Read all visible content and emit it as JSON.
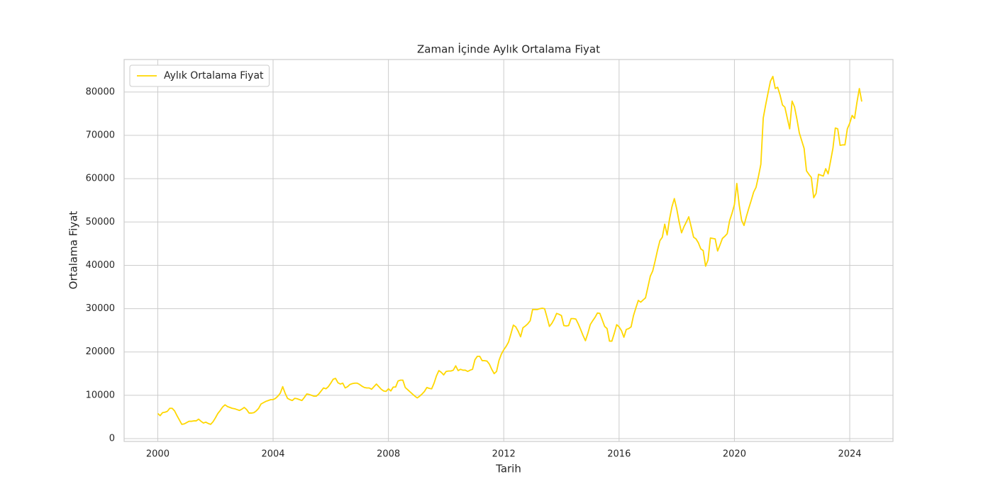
{
  "chart_data": {
    "type": "line",
    "title": "Zaman İçinde Aylık Ortalama Fiyat",
    "xlabel": "Tarih",
    "ylabel": "Ortalama Fiyat",
    "legend": "upper left",
    "grid": true,
    "xlim": [
      "1998-11",
      "2025-07"
    ],
    "xticks": [
      "2000",
      "2004",
      "2008",
      "2012",
      "2016",
      "2020",
      "2024"
    ],
    "ylim": [
      -650,
      87500
    ],
    "yticks": [
      0,
      10000,
      20000,
      30000,
      40000,
      50000,
      60000,
      70000,
      80000
    ],
    "x": [
      "2000-01",
      "2000-02",
      "2000-03",
      "2000-04",
      "2000-05",
      "2000-06",
      "2000-07",
      "2000-08",
      "2000-09",
      "2000-10",
      "2000-11",
      "2000-12",
      "2001-01",
      "2001-02",
      "2001-03",
      "2001-04",
      "2001-05",
      "2001-06",
      "2001-07",
      "2001-08",
      "2001-09",
      "2001-10",
      "2001-11",
      "2001-12",
      "2002-01",
      "2002-02",
      "2002-03",
      "2002-04",
      "2002-05",
      "2002-06",
      "2002-07",
      "2002-08",
      "2002-09",
      "2002-10",
      "2002-11",
      "2002-12",
      "2003-01",
      "2003-02",
      "2003-03",
      "2003-04",
      "2003-05",
      "2003-06",
      "2003-07",
      "2003-08",
      "2003-09",
      "2003-10",
      "2003-11",
      "2003-12",
      "2004-01",
      "2004-02",
      "2004-03",
      "2004-04",
      "2004-05",
      "2004-06",
      "2004-07",
      "2004-08",
      "2004-09",
      "2004-10",
      "2004-11",
      "2004-12",
      "2005-01",
      "2005-02",
      "2005-03",
      "2005-04",
      "2005-05",
      "2005-06",
      "2005-07",
      "2005-08",
      "2005-09",
      "2005-10",
      "2005-11",
      "2005-12",
      "2006-01",
      "2006-02",
      "2006-03",
      "2006-04",
      "2006-05",
      "2006-06",
      "2006-07",
      "2006-08",
      "2006-09",
      "2006-10",
      "2006-11",
      "2006-12",
      "2007-01",
      "2007-02",
      "2007-03",
      "2007-04",
      "2007-05",
      "2007-06",
      "2007-07",
      "2007-08",
      "2007-09",
      "2007-10",
      "2007-11",
      "2007-12",
      "2008-01",
      "2008-02",
      "2008-03",
      "2008-04",
      "2008-05",
      "2008-06",
      "2008-07",
      "2008-08",
      "2008-09",
      "2008-10",
      "2008-11",
      "2008-12",
      "2009-01",
      "2009-02",
      "2009-03",
      "2009-04",
      "2009-05",
      "2009-06",
      "2009-07",
      "2009-08",
      "2009-09",
      "2009-10",
      "2009-11",
      "2009-12",
      "2010-01",
      "2010-02",
      "2010-03",
      "2010-04",
      "2010-05",
      "2010-06",
      "2010-07",
      "2010-08",
      "2010-09",
      "2010-10",
      "2010-11",
      "2010-12",
      "2011-01",
      "2011-02",
      "2011-03",
      "2011-04",
      "2011-05",
      "2011-06",
      "2011-07",
      "2011-08",
      "2011-09",
      "2011-10",
      "2011-11",
      "2011-12",
      "2012-01",
      "2012-02",
      "2012-03",
      "2012-04",
      "2012-05",
      "2012-06",
      "2012-07",
      "2012-08",
      "2012-09",
      "2012-10",
      "2012-11",
      "2012-12",
      "2013-01",
      "2013-02",
      "2013-03",
      "2013-04",
      "2013-05",
      "2013-06",
      "2013-07",
      "2013-08",
      "2013-09",
      "2013-10",
      "2013-11",
      "2013-12",
      "2014-01",
      "2014-02",
      "2014-03",
      "2014-04",
      "2014-05",
      "2014-06",
      "2014-07",
      "2014-08",
      "2014-09",
      "2014-10",
      "2014-11",
      "2014-12",
      "2015-01",
      "2015-02",
      "2015-03",
      "2015-04",
      "2015-05",
      "2015-06",
      "2015-07",
      "2015-08",
      "2015-09",
      "2015-10",
      "2015-11",
      "2015-12",
      "2016-01",
      "2016-02",
      "2016-03",
      "2016-04",
      "2016-05",
      "2016-06",
      "2016-07",
      "2016-08",
      "2016-09",
      "2016-10",
      "2016-11",
      "2016-12",
      "2017-01",
      "2017-02",
      "2017-03",
      "2017-04",
      "2017-05",
      "2017-06",
      "2017-07",
      "2017-08",
      "2017-09",
      "2017-10",
      "2017-11",
      "2017-12",
      "2018-01",
      "2018-02",
      "2018-03",
      "2018-04",
      "2018-05",
      "2018-06",
      "2018-07",
      "2018-08",
      "2018-09",
      "2018-10",
      "2018-11",
      "2018-12",
      "2019-01",
      "2019-02",
      "2019-03",
      "2019-04",
      "2019-05",
      "2019-06",
      "2019-07",
      "2019-08",
      "2019-09",
      "2019-10",
      "2019-11",
      "2019-12",
      "2020-01",
      "2020-02",
      "2020-03",
      "2020-04",
      "2020-05",
      "2020-06",
      "2020-07",
      "2020-08",
      "2020-09",
      "2020-10",
      "2020-11",
      "2020-12",
      "2021-01",
      "2021-02",
      "2021-03",
      "2021-04",
      "2021-05",
      "2021-06",
      "2021-07",
      "2021-08",
      "2021-09",
      "2021-10",
      "2021-11",
      "2021-12",
      "2022-01",
      "2022-02",
      "2022-03",
      "2022-04",
      "2022-05",
      "2022-06",
      "2022-07",
      "2022-08",
      "2022-09",
      "2022-10",
      "2022-11",
      "2022-12",
      "2023-01",
      "2023-02",
      "2023-03",
      "2023-04",
      "2023-05",
      "2023-06",
      "2023-07",
      "2023-08",
      "2023-09",
      "2023-10",
      "2023-11",
      "2023-12",
      "2024-01",
      "2024-02",
      "2024-03",
      "2024-04",
      "2024-05",
      "2024-06"
    ],
    "series": [
      {
        "name": "Aylık Ortalama Fiyat",
        "color": "#ffd700",
        "values": [
          5800,
          5300,
          6000,
          6100,
          6300,
          7000,
          7000,
          6400,
          5300,
          4300,
          3300,
          3400,
          3700,
          4000,
          4000,
          4100,
          4100,
          4500,
          4000,
          3600,
          3800,
          3500,
          3300,
          3900,
          4800,
          5800,
          6500,
          7300,
          7800,
          7400,
          7200,
          7000,
          6900,
          6700,
          6500,
          6800,
          7200,
          6700,
          5900,
          5900,
          6000,
          6400,
          7000,
          8000,
          8300,
          8600,
          8800,
          9000,
          9000,
          9300,
          9800,
          10500,
          12000,
          10500,
          9300,
          9000,
          8800,
          9300,
          9200,
          9000,
          8800,
          9500,
          10300,
          10200,
          10000,
          9800,
          9800,
          10300,
          11000,
          11700,
          11500,
          12000,
          12800,
          13700,
          13900,
          12900,
          12600,
          12800,
          11700,
          12000,
          12500,
          12700,
          12800,
          12800,
          12500,
          12100,
          11800,
          11700,
          11700,
          11400,
          12000,
          12600,
          12000,
          11400,
          11000,
          10900,
          11500,
          11000,
          11900,
          11900,
          13300,
          13500,
          13500,
          11800,
          11300,
          10800,
          10300,
          9800,
          9400,
          9800,
          10300,
          10900,
          11800,
          11600,
          11500,
          12800,
          14500,
          15700,
          15300,
          14700,
          15500,
          15600,
          15600,
          15800,
          16800,
          15700,
          16000,
          15800,
          15800,
          15500,
          15800,
          16000,
          18200,
          19000,
          19000,
          18000,
          18000,
          17900,
          17200,
          16000,
          15000,
          15500,
          18000,
          19500,
          20500,
          21300,
          22300,
          24200,
          26200,
          25800,
          24800,
          23500,
          25600,
          26000,
          26500,
          27200,
          29800,
          29800,
          29800,
          30000,
          30100,
          30000,
          28000,
          25900,
          26600,
          27600,
          28900,
          28700,
          28400,
          26100,
          26000,
          26100,
          27700,
          27700,
          27600,
          26500,
          25200,
          23800,
          22600,
          24300,
          26300,
          27200,
          28000,
          29000,
          28900,
          27400,
          25900,
          25400,
          22500,
          22500,
          24300,
          26300,
          25800,
          24900,
          23400,
          25200,
          25400,
          25800,
          28400,
          30200,
          31900,
          31500,
          32000,
          32500,
          35000,
          37500,
          38700,
          41000,
          43500,
          45700,
          46500,
          49500,
          47000,
          50700,
          53500,
          55400,
          53000,
          50000,
          47500,
          48900,
          50000,
          51200,
          48900,
          46500,
          46100,
          45200,
          43800,
          43400,
          39800,
          41200,
          46300,
          46200,
          46100,
          43300,
          44700,
          46200,
          46700,
          47300,
          50300,
          52000,
          54000,
          58900,
          53900,
          50400,
          49200,
          51300,
          53200,
          55000,
          56900,
          58000,
          60500,
          63300,
          74000,
          77000,
          79800,
          82500,
          83600,
          80800,
          81100,
          79300,
          77000,
          76500,
          74000,
          71500,
          77900,
          76600,
          73800,
          70600,
          68800,
          67000,
          61800,
          61000,
          60300,
          55600,
          56600,
          61000,
          60800,
          60600,
          62300,
          61100,
          64000,
          67000,
          71700,
          71500,
          67700,
          67800,
          67800,
          71500,
          72800,
          74600,
          73900,
          77600,
          80800,
          77800
        ]
      }
    ]
  }
}
